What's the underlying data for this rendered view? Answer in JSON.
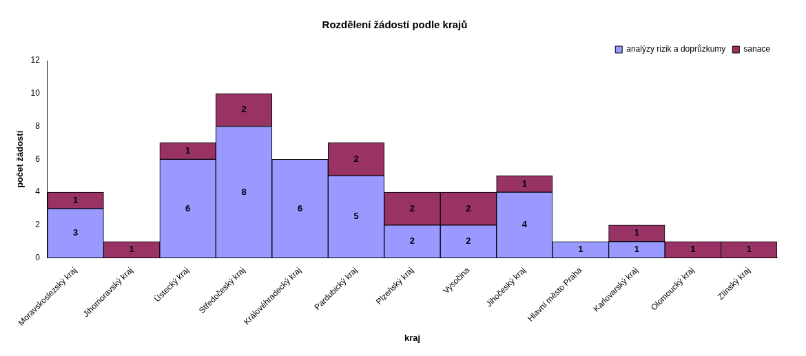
{
  "chart_data": {
    "type": "bar",
    "title": "Rozdělení žádostí podle krajů",
    "xlabel": "kraj",
    "ylabel": "počet žádostí",
    "stacked": true,
    "categories": [
      "Moravskoslezský kraj",
      "Jihomoravský kraj",
      "Ústecký kraj",
      "Středočeský kraj",
      "Královéhradecký kraj",
      "Pardubický kraj",
      "Plzeňský kraj",
      "Vysočina",
      "Jihočeský kraj",
      "Hlavní město Praha",
      "Karlovarský kraj",
      "Olomoucký kraj",
      "Zlínský kraj"
    ],
    "series": [
      {
        "name": "analýzy rizik a doprůzkumy",
        "color": "#9999ff",
        "values": [
          3,
          0,
          6,
          8,
          6,
          5,
          2,
          2,
          4,
          1,
          1,
          0,
          0
        ],
        "value_labels": [
          "3",
          null,
          "6",
          "8",
          "6",
          "5",
          "2",
          "2",
          "4",
          "1",
          "1",
          null,
          null
        ]
      },
      {
        "name": "sanace",
        "color": "#993366",
        "values": [
          1,
          1,
          1,
          2,
          0,
          2,
          2,
          2,
          1,
          0,
          1,
          1,
          1
        ],
        "value_labels": [
          "1",
          "1",
          "1",
          "2",
          null,
          "2",
          "2",
          "2",
          "1",
          null,
          "1",
          "1",
          "1"
        ]
      }
    ],
    "ylim": [
      0,
      12
    ],
    "yticks": [
      0,
      2,
      4,
      6,
      8,
      10,
      12
    ],
    "grid": false,
    "legend": "top right"
  }
}
